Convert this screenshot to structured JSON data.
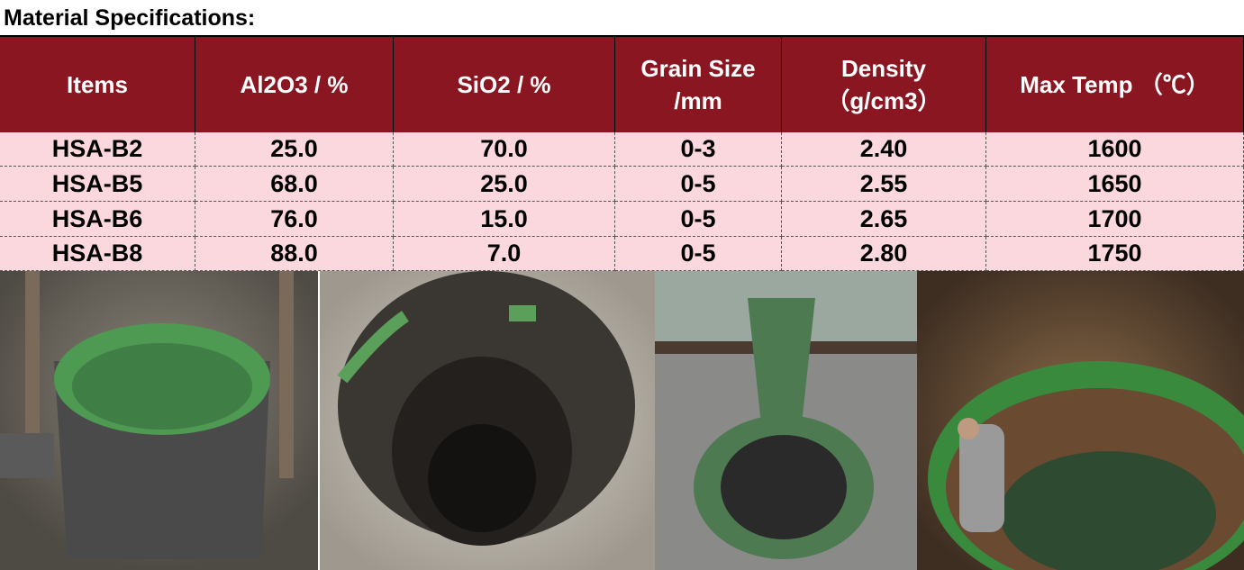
{
  "title": "Material Specifications:",
  "table": {
    "header": [
      [
        "Items"
      ],
      [
        "Al2O3 / %"
      ],
      [
        "SiO2 / %"
      ],
      [
        "Grain Size",
        "/mm"
      ],
      [
        "Density",
        "（g/cm3）"
      ],
      [
        "Max Temp （℃）"
      ]
    ],
    "rows": [
      [
        "HSA-B2",
        "25.0",
        "70.0",
        "0-3",
        "2.40",
        "1600"
      ],
      [
        "HSA-B5",
        "68.0",
        "25.0",
        "0-5",
        "2.55",
        "1650"
      ],
      [
        "HSA-B6",
        "76.0",
        "15.0",
        "0-5",
        "2.65",
        "1700"
      ],
      [
        "HSA-B8",
        "88.0",
        "7.0",
        "0-5",
        "2.80",
        "1750"
      ]
    ]
  }
}
